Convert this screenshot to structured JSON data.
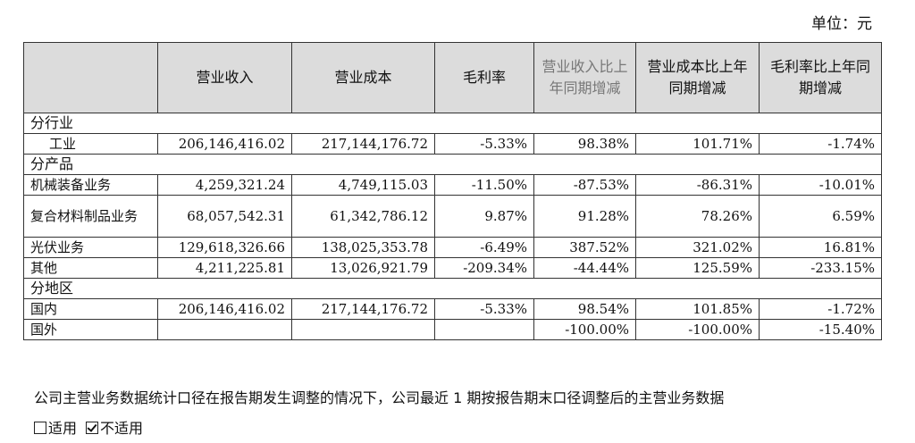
{
  "unit_label": "单位：元",
  "headers": {
    "blank": "",
    "revenue": "营业收入",
    "cost": "营业成本",
    "margin": "毛利率",
    "revenue_yoy": "营业收入比上年同期增减",
    "cost_yoy": "营业成本比上年同期增减",
    "margin_yoy": "毛利率比上年同期增减"
  },
  "groups": {
    "industry": "分行业",
    "product": "分产品",
    "region": "分地区"
  },
  "rows": {
    "industry": [
      {
        "label": "工业",
        "revenue": "206,146,416.02",
        "cost": "217,144,176.72",
        "margin": "-5.33%",
        "revenue_yoy": "98.38%",
        "cost_yoy": "101.71%",
        "margin_yoy": "-1.74%"
      }
    ],
    "product": [
      {
        "label": "机械装备业务",
        "revenue": "4,259,321.24",
        "cost": "4,749,115.03",
        "margin": "-11.50%",
        "revenue_yoy": "-87.53%",
        "cost_yoy": "-86.31%",
        "margin_yoy": "-10.01%"
      },
      {
        "label": "复合材料制品业务",
        "revenue": "68,057,542.31",
        "cost": "61,342,786.12",
        "margin": "9.87%",
        "revenue_yoy": "91.28%",
        "cost_yoy": "78.26%",
        "margin_yoy": "6.59%"
      },
      {
        "label": "光伏业务",
        "revenue": "129,618,326.66",
        "cost": "138,025,353.78",
        "margin": "-6.49%",
        "revenue_yoy": "387.52%",
        "cost_yoy": "321.02%",
        "margin_yoy": "16.81%"
      },
      {
        "label": "其他",
        "revenue": "4,211,225.81",
        "cost": "13,026,921.79",
        "margin": "-209.34%",
        "revenue_yoy": "-44.44%",
        "cost_yoy": "125.59%",
        "margin_yoy": "-233.15%"
      }
    ],
    "region": [
      {
        "label": "国内",
        "revenue": "206,146,416.02",
        "cost": "217,144,176.72",
        "margin": "-5.33%",
        "revenue_yoy": "98.54%",
        "cost_yoy": "101.85%",
        "margin_yoy": "-1.72%"
      },
      {
        "label": "国外",
        "revenue": "",
        "cost": "",
        "margin": "",
        "revenue_yoy": "-100.00%",
        "cost_yoy": "-100.00%",
        "margin_yoy": "-15.40%"
      }
    ]
  },
  "note": "公司主营业务数据统计口径在报告期发生调整的情况下，公司最近 1 期按报告期末口径调整后的主营业务数据",
  "options": {
    "applicable": "适用",
    "not_applicable": "不适用"
  }
}
